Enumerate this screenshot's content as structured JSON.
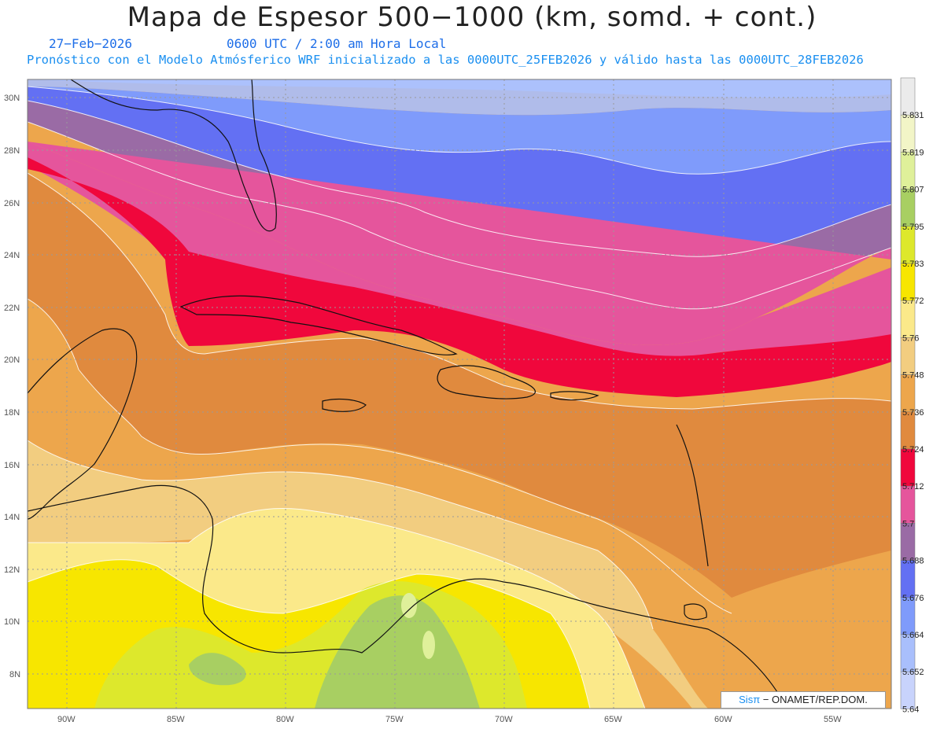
{
  "title": "Mapa de Espesor 500−1000 (km, somd. + cont.)",
  "date": "27−Feb−2026",
  "time": "0600 UTC / 2:00 am Hora Local",
  "description": "Pronóstico con el Modelo Atmósferico WRF inicializado a las 0000UTC_25FEB2026 y válido hasta las  0000UTC_28FEB2026",
  "lat_labels": [
    "30N",
    "28N",
    "26N",
    "24N",
    "22N",
    "20N",
    "18N",
    "16N",
    "14N",
    "12N",
    "10N",
    "8N"
  ],
  "lon_labels": [
    "90W",
    "85W",
    "80W",
    "75W",
    "70W",
    "65W",
    "60W",
    "55W"
  ],
  "colorbar": {
    "labels": [
      "5.831",
      "5.819",
      "5.807",
      "5.795",
      "5.783",
      "5.772",
      "5.76",
      "5.748",
      "5.736",
      "5.724",
      "5.712",
      "5.7",
      "5.688",
      "5.676",
      "5.664",
      "5.652",
      "5.64"
    ],
    "colors": [
      "#ebebeb",
      "#f2f5c7",
      "#dff09a",
      "#a8cf62",
      "#dde82c",
      "#f7e600",
      "#fbe98a",
      "#f2cd80",
      "#eda64c",
      "#e08a3e",
      "#f0073c",
      "#e5559c",
      "#9a6ba5",
      "#6370f3",
      "#7f9bfb",
      "#a9bffc",
      "#c8d3fc"
    ]
  },
  "credit": {
    "sis": "Sisπ",
    "rest": "− ONAMET/REP.DOM."
  }
}
